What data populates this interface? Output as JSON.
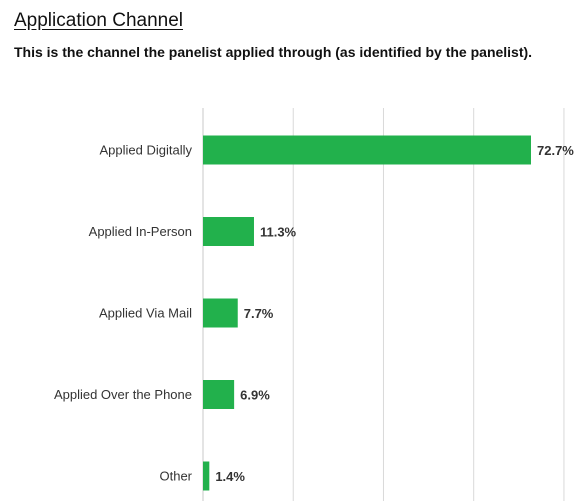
{
  "header": {
    "title": "Application Channel",
    "subtitle": "This is the channel the panelist applied through (as identified by the panelist)."
  },
  "chart_data": {
    "type": "bar",
    "orientation": "horizontal",
    "title": "",
    "xlabel": "",
    "ylabel": "",
    "categories": [
      "Applied Digitally",
      "Applied In-Person",
      "Applied Via Mail",
      "Applied Over the Phone",
      "Other"
    ],
    "values": [
      72.7,
      11.3,
      7.7,
      6.9,
      1.4
    ],
    "value_labels": [
      "72.7%",
      "11.3%",
      "7.7%",
      "6.9%",
      "1.4%"
    ],
    "xlim": [
      0,
      100
    ],
    "grid": true,
    "legend": "none",
    "bar_color": "#22b14c",
    "gridline_color": "#d9d9d9"
  }
}
